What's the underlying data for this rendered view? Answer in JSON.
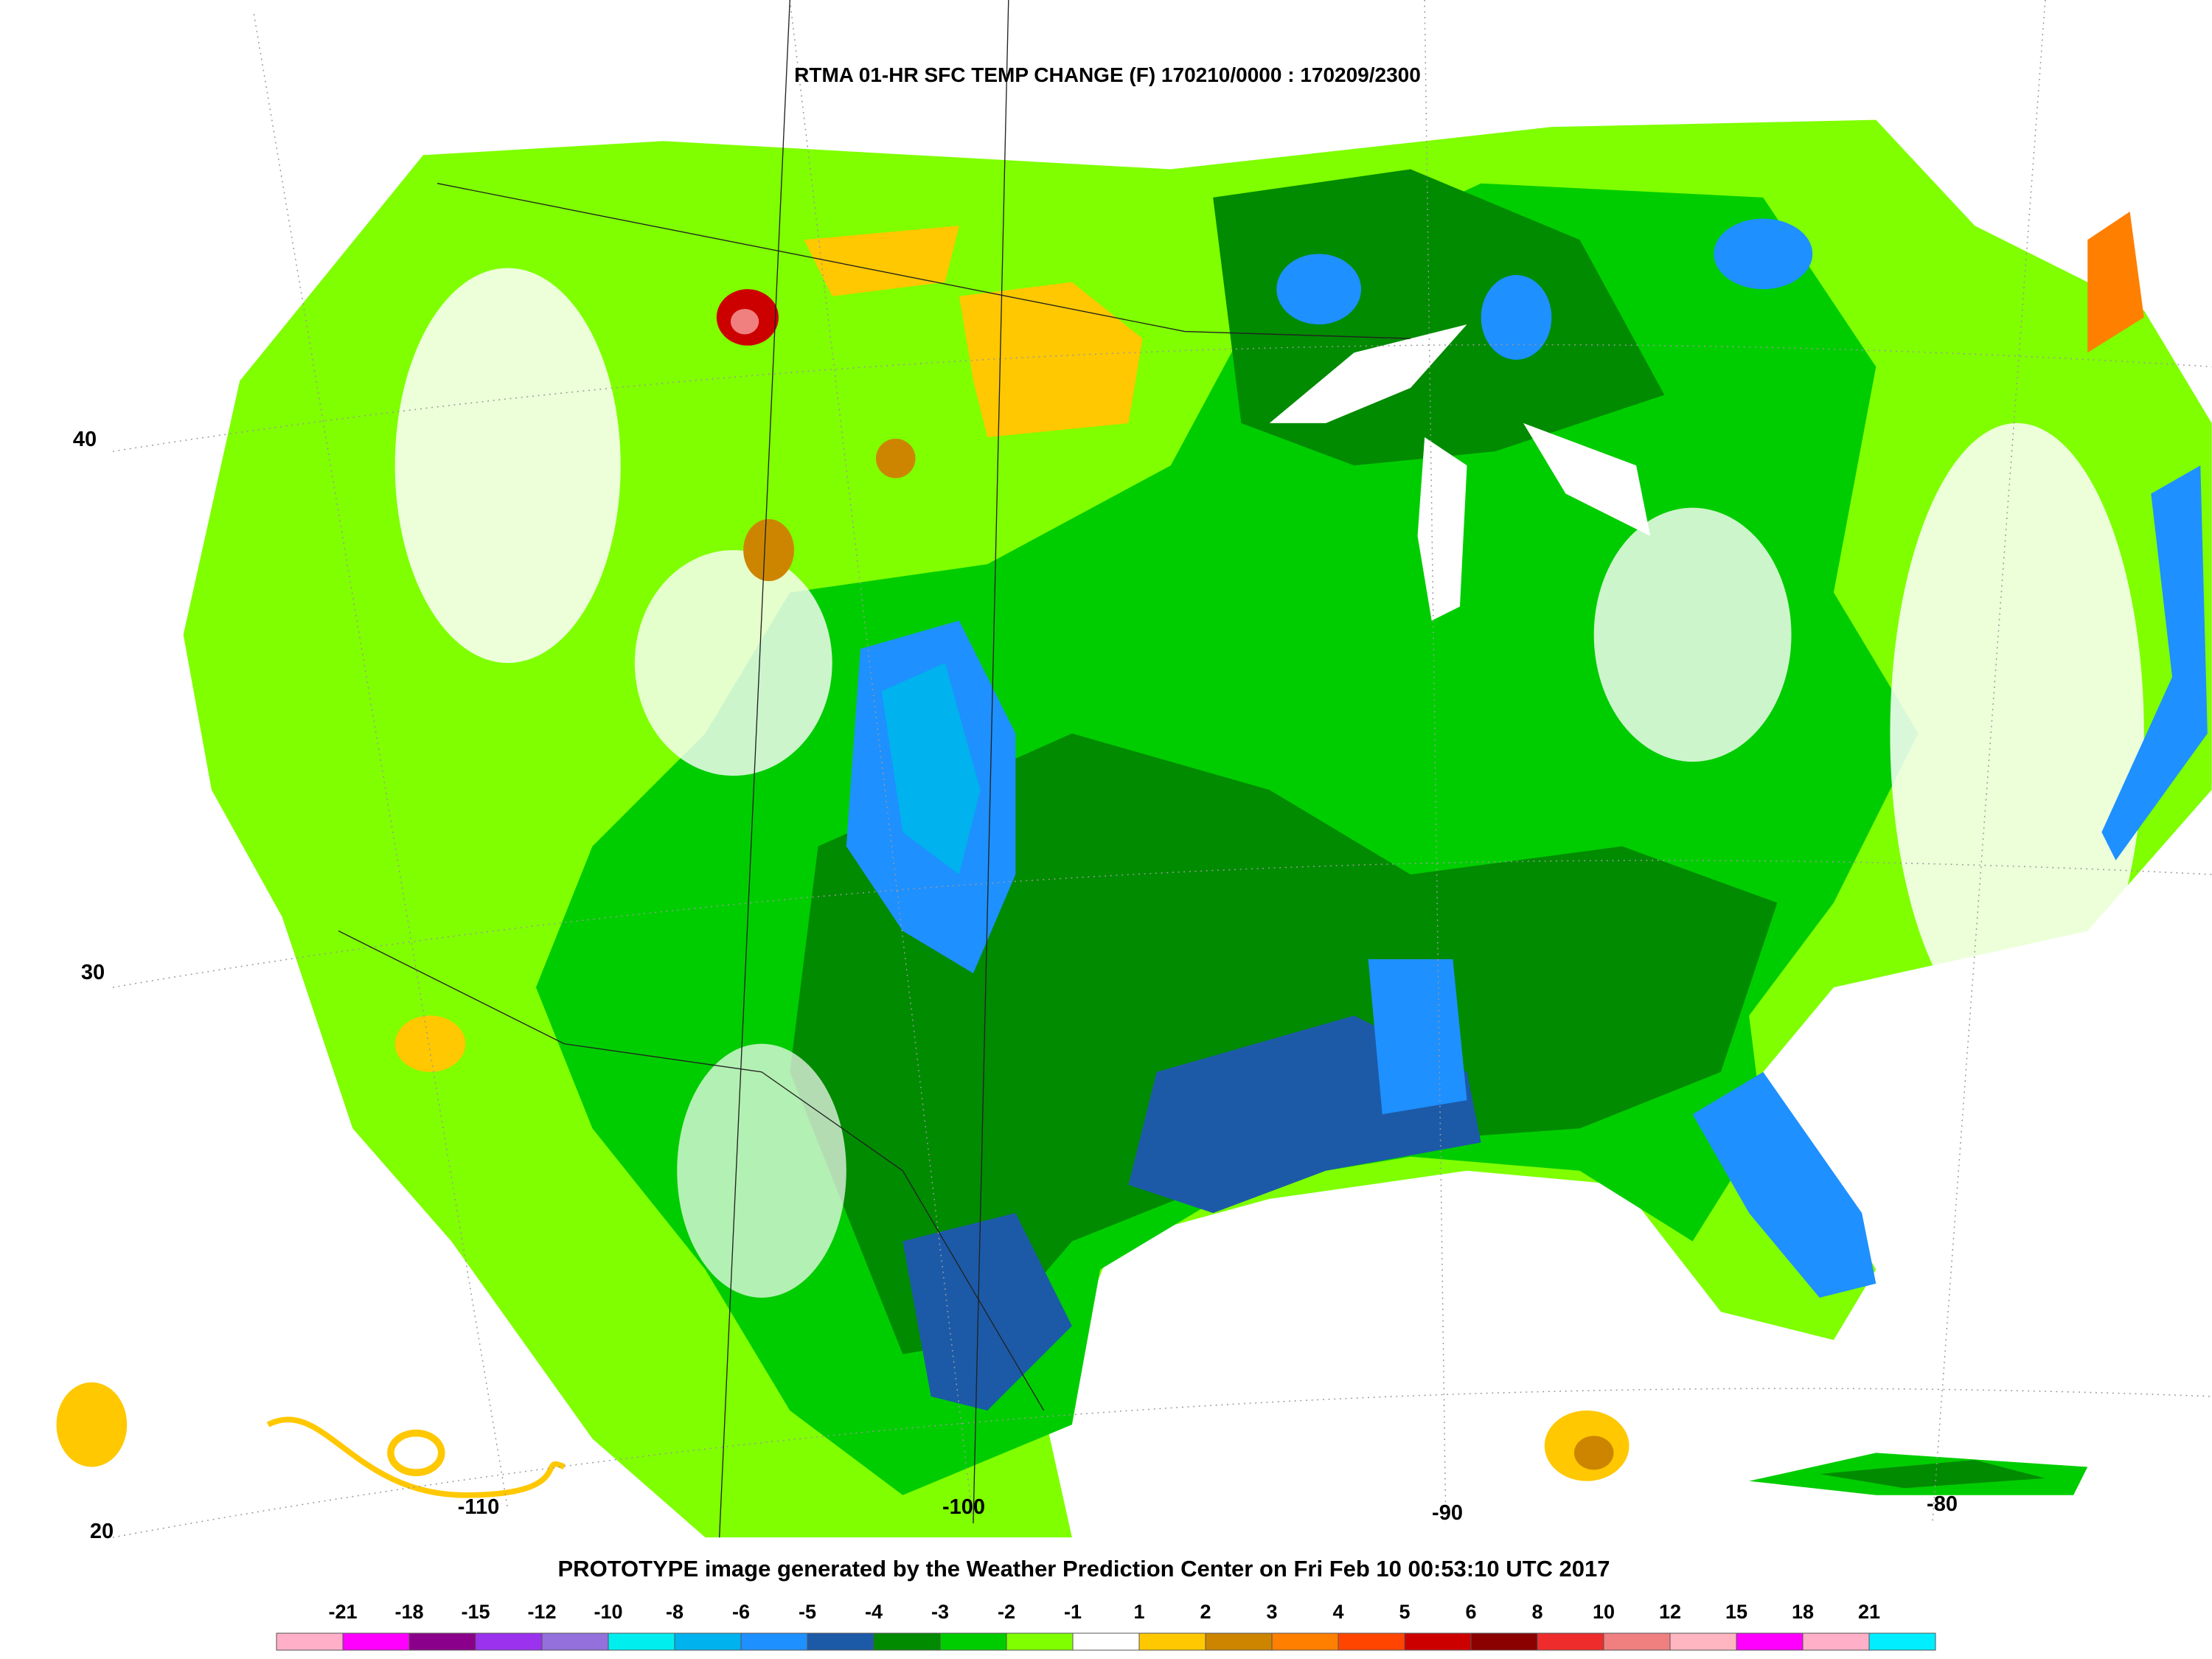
{
  "header": {
    "title": "RTMA 01-HR SFC TEMP CHANGE (F) 170210/0000 : 170209/2300"
  },
  "footer": {
    "text": "PROTOTYPE image generated by the Weather Prediction Center on Fri Feb 10 00:53:10 UTC 2017"
  },
  "map": {
    "latitudes": [
      40,
      30,
      20
    ],
    "longitudes": [
      -110,
      -100,
      -90,
      -80
    ]
  },
  "legend": {
    "ticks": [
      -21,
      -18,
      -15,
      -12,
      -10,
      -8,
      -6,
      -5,
      -4,
      -3,
      -2,
      -1,
      1,
      2,
      3,
      4,
      5,
      6,
      8,
      10,
      12,
      15,
      18,
      21
    ],
    "colors": [
      "#ffb0c8",
      "#ff00ff",
      "#8b008b",
      "#9a32ee",
      "#9370db",
      "#00eeee",
      "#00b2ee",
      "#1e90ff",
      "#1c5aa8",
      "#008b00",
      "#00cd00",
      "#7fff00",
      "#ffffff",
      "#ffc800",
      "#cd8500",
      "#ff7f00",
      "#ff4500",
      "#cd0000",
      "#8b0000",
      "#ee2c2c",
      "#f08080",
      "#ffb6c1",
      "#ff00ff",
      "#ffb0c8",
      "#00eeff"
    ]
  }
}
